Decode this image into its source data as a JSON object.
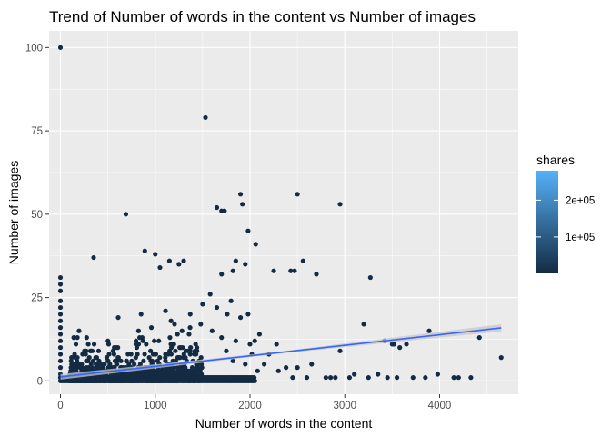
{
  "chart_data": {
    "type": "scatter",
    "title": "Trend of Number of words in the content vs Number of images",
    "xlabel": "Number of words in the content",
    "ylabel": "Number of images",
    "xlim": [
      -120,
      4830
    ],
    "ylim": [
      -4,
      105
    ],
    "xticks": [
      0,
      1000,
      2000,
      3000,
      4000
    ],
    "yticks": [
      0,
      25,
      50,
      75,
      100
    ],
    "x_tick_labels": [
      "0",
      "1000",
      "2000",
      "3000",
      "4000"
    ],
    "y_tick_labels": [
      "0",
      "25",
      "50",
      "75",
      "100"
    ],
    "grid": true,
    "legend": {
      "title": "shares",
      "position": "right",
      "range": [
        1000,
        280000
      ],
      "ticks": [
        100000,
        200000
      ],
      "tick_labels": [
        "1e+05",
        "2e+05"
      ],
      "color_low": "#132B43",
      "color_high": "#56B1F7"
    },
    "trend_line": {
      "x": [
        0,
        4650
      ],
      "y": [
        1.2,
        15.9
      ],
      "color": "#3366FF",
      "band_color": "#c8c8c8"
    },
    "points": [
      {
        "x": 0,
        "y": 100
      },
      {
        "x": 1530,
        "y": 79
      },
      {
        "x": 1900,
        "y": 56
      },
      {
        "x": 2500,
        "y": 56
      },
      {
        "x": 1920,
        "y": 53
      },
      {
        "x": 2950,
        "y": 53
      },
      {
        "x": 1650,
        "y": 52
      },
      {
        "x": 1700,
        "y": 51
      },
      {
        "x": 1730,
        "y": 51
      },
      {
        "x": 690,
        "y": 50
      },
      {
        "x": 1980,
        "y": 45
      },
      {
        "x": 2060,
        "y": 41
      },
      {
        "x": 890,
        "y": 39
      },
      {
        "x": 1000,
        "y": 38
      },
      {
        "x": 350,
        "y": 37
      },
      {
        "x": 1150,
        "y": 36
      },
      {
        "x": 1300,
        "y": 36
      },
      {
        "x": 1950,
        "y": 35
      },
      {
        "x": 1850,
        "y": 36
      },
      {
        "x": 2560,
        "y": 36
      },
      {
        "x": 1250,
        "y": 35
      },
      {
        "x": 1050,
        "y": 34
      },
      {
        "x": 2250,
        "y": 33
      },
      {
        "x": 2430,
        "y": 33
      },
      {
        "x": 2470,
        "y": 33
      },
      {
        "x": 2700,
        "y": 32
      },
      {
        "x": 1700,
        "y": 32
      },
      {
        "x": 1820,
        "y": 33
      },
      {
        "x": 0,
        "y": 31
      },
      {
        "x": 0,
        "y": 29
      },
      {
        "x": 3270,
        "y": 31
      },
      {
        "x": 3200,
        "y": 17
      },
      {
        "x": 3420,
        "y": 12
      },
      {
        "x": 3500,
        "y": 11
      },
      {
        "x": 3520,
        "y": 11
      },
      {
        "x": 3580,
        "y": 10
      },
      {
        "x": 3650,
        "y": 11
      },
      {
        "x": 3890,
        "y": 15
      },
      {
        "x": 4420,
        "y": 13
      },
      {
        "x": 4650,
        "y": 7
      },
      {
        "x": 2950,
        "y": 9
      },
      {
        "x": 3100,
        "y": 2
      },
      {
        "x": 3250,
        "y": 1
      },
      {
        "x": 3350,
        "y": 2
      },
      {
        "x": 3550,
        "y": 1
      },
      {
        "x": 3720,
        "y": 1
      },
      {
        "x": 3850,
        "y": 1
      },
      {
        "x": 3980,
        "y": 2
      },
      {
        "x": 4150,
        "y": 1
      },
      {
        "x": 4200,
        "y": 1
      },
      {
        "x": 4330,
        "y": 1
      },
      {
        "x": 2650,
        "y": 5
      },
      {
        "x": 2500,
        "y": 4
      },
      {
        "x": 2800,
        "y": 1
      },
      {
        "x": 2850,
        "y": 1
      },
      {
        "x": 2900,
        "y": 1
      },
      {
        "x": 2600,
        "y": 1
      },
      {
        "x": 2450,
        "y": 1
      },
      {
        "x": 2300,
        "y": 3
      },
      {
        "x": 2200,
        "y": 8
      },
      {
        "x": 2150,
        "y": 5
      },
      {
        "x": 2280,
        "y": 11
      },
      {
        "x": 2380,
        "y": 4
      },
      {
        "x": 3450,
        "y": 1
      },
      {
        "x": 3050,
        "y": 1
      },
      {
        "x": 2100,
        "y": 14
      },
      {
        "x": 2000,
        "y": 11
      },
      {
        "x": 2050,
        "y": 12
      },
      {
        "x": 1980,
        "y": 20
      },
      {
        "x": 1900,
        "y": 19
      },
      {
        "x": 1800,
        "y": 24
      },
      {
        "x": 1760,
        "y": 20
      },
      {
        "x": 1650,
        "y": 22
      },
      {
        "x": 1580,
        "y": 26
      },
      {
        "x": 1500,
        "y": 23
      },
      {
        "x": 1480,
        "y": 17
      },
      {
        "x": 1600,
        "y": 15
      },
      {
        "x": 1700,
        "y": 13
      },
      {
        "x": 1850,
        "y": 12
      },
      {
        "x": 1750,
        "y": 9
      },
      {
        "x": 1950,
        "y": 5
      },
      {
        "x": 2020,
        "y": 8
      },
      {
        "x": 2080,
        "y": 3
      },
      {
        "x": 1820,
        "y": 6
      },
      {
        "x": 0,
        "y": 27
      },
      {
        "x": 0,
        "y": 24
      },
      {
        "x": 0,
        "y": 22
      },
      {
        "x": 0,
        "y": 20
      },
      {
        "x": 0,
        "y": 18
      },
      {
        "x": 0,
        "y": 16
      },
      {
        "x": 0,
        "y": 14
      },
      {
        "x": 0,
        "y": 12
      },
      {
        "x": 0,
        "y": 10
      },
      {
        "x": 0,
        "y": 8
      },
      {
        "x": 0,
        "y": 6
      },
      {
        "x": 0,
        "y": 4
      },
      {
        "x": 0,
        "y": 2
      },
      {
        "x": 0,
        "y": 1
      },
      {
        "x": 0,
        "y": 0
      }
    ],
    "dense_cluster": {
      "count": 900,
      "x_range": [
        100,
        1500
      ],
      "y_range": [
        0,
        26
      ]
    }
  }
}
